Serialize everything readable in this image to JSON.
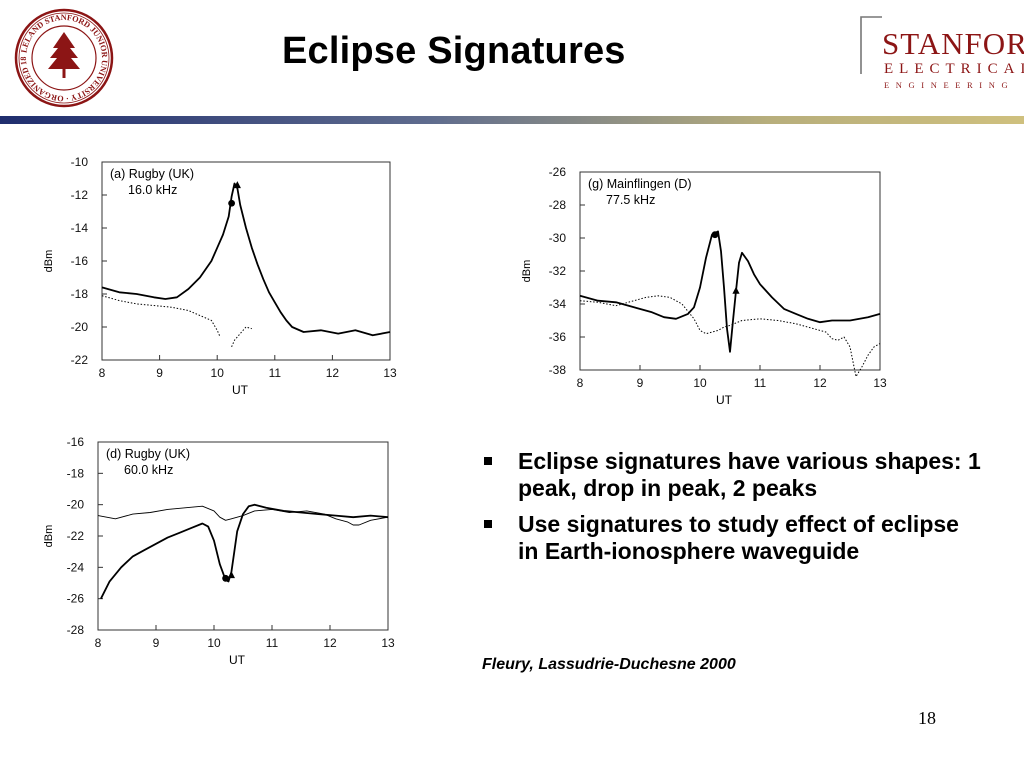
{
  "slide": {
    "title": "Eclipse Signatures",
    "page_number": "18",
    "bullets": [
      "Eclipse signatures have various shapes: 1 peak, drop in peak, 2 peaks",
      "Use signatures to study effect of eclipse in Earth-ionosphere waveguide"
    ],
    "citation": "Fleury, Lassudrie-Duchesne 2000",
    "seal_text": "LELAND STANFORD JUNIOR UNIVERSITY · ORGANIZED 1891",
    "logo": {
      "line1": "STANFORD",
      "line2": "ELECTRICAL",
      "line3": "ENGINEERING"
    }
  },
  "colors": {
    "accent_navy": "#2a3a78",
    "accent_gold": "#c8b560",
    "stanford_red": "#8c1515",
    "ink": "#000000"
  },
  "chart_data": [
    {
      "type": "line",
      "title": "(a) Rugby (UK)",
      "subtitle": "16.0 kHz",
      "xlabel": "UT",
      "ylabel": "dBm",
      "xlim": [
        8,
        13
      ],
      "ylim": [
        -22,
        -10
      ],
      "xticks": [
        8,
        9,
        10,
        11,
        12,
        13
      ],
      "yticks": [
        -10,
        -12,
        -14,
        -16,
        -18,
        -20,
        -22
      ],
      "grid": false,
      "series": [
        {
          "style": "solid",
          "x": [
            8.0,
            8.3,
            8.6,
            8.9,
            9.1,
            9.3,
            9.5,
            9.7,
            9.9,
            10.0,
            10.1,
            10.2,
            10.25,
            10.3,
            10.35,
            10.4,
            10.5,
            10.6,
            10.7,
            10.8,
            10.9,
            11.0,
            11.1,
            11.2,
            11.3,
            11.5,
            11.8,
            12.1,
            12.4,
            12.7,
            13.0
          ],
          "y": [
            -17.6,
            -17.9,
            -18.0,
            -18.2,
            -18.3,
            -18.2,
            -17.7,
            -17.0,
            -16.0,
            -15.2,
            -14.4,
            -13.3,
            -12.1,
            -11.3,
            -11.6,
            -12.6,
            -14.0,
            -15.2,
            -16.2,
            -17.1,
            -17.9,
            -18.5,
            -19.1,
            -19.6,
            -20.0,
            -20.3,
            -20.2,
            -20.4,
            -20.2,
            -20.5,
            -20.3
          ]
        },
        {
          "style": "dotted",
          "x": [
            8.0,
            8.3,
            8.6,
            8.9,
            9.2,
            9.5,
            9.7,
            9.9,
            10.0,
            10.05
          ],
          "y": [
            -18.1,
            -18.4,
            -18.6,
            -18.7,
            -18.8,
            -19.0,
            -19.3,
            -19.6,
            -20.2,
            -20.6
          ]
        },
        {
          "style": "dotted",
          "x": [
            10.25,
            10.3,
            10.4,
            10.5,
            10.6
          ],
          "y": [
            -21.2,
            -20.8,
            -20.4,
            -20.0,
            -20.1
          ]
        }
      ],
      "markers": [
        {
          "shape": "circle",
          "x": 10.25,
          "y": -12.5
        },
        {
          "shape": "triangle",
          "x": 10.35,
          "y": -11.4
        }
      ]
    },
    {
      "type": "line",
      "title": "(g) Mainflingen (D)",
      "subtitle": "77.5 kHz",
      "xlabel": "UT",
      "ylabel": "dBm",
      "xlim": [
        8,
        13
      ],
      "ylim": [
        -38,
        -26
      ],
      "xticks": [
        8,
        9,
        10,
        11,
        12,
        13
      ],
      "yticks": [
        -26,
        -28,
        -30,
        -32,
        -34,
        -36,
        -38
      ],
      "grid": false,
      "series": [
        {
          "style": "solid",
          "x": [
            8.0,
            8.3,
            8.6,
            8.9,
            9.2,
            9.4,
            9.6,
            9.8,
            9.9,
            10.0,
            10.1,
            10.2,
            10.3,
            10.35,
            10.4,
            10.45,
            10.5,
            10.55,
            10.6,
            10.65,
            10.7,
            10.8,
            10.9,
            11.0,
            11.2,
            11.4,
            11.6,
            11.8,
            12.0,
            12.2,
            12.5,
            12.8,
            13.0
          ],
          "y": [
            -33.5,
            -33.8,
            -33.9,
            -34.2,
            -34.5,
            -34.8,
            -34.9,
            -34.6,
            -34.2,
            -33.0,
            -31.2,
            -29.8,
            -29.6,
            -30.8,
            -33.0,
            -35.5,
            -36.9,
            -35.0,
            -33.2,
            -31.5,
            -30.9,
            -31.4,
            -32.2,
            -32.8,
            -33.6,
            -34.3,
            -34.6,
            -34.9,
            -35.1,
            -35.0,
            -35.0,
            -34.8,
            -34.6
          ]
        },
        {
          "style": "dotted",
          "x": [
            8.0,
            8.3,
            8.6,
            8.9,
            9.1,
            9.3,
            9.5,
            9.7,
            9.9,
            10.0,
            10.1,
            10.2,
            10.3,
            10.4,
            10.5,
            10.7,
            11.0,
            11.3,
            11.6,
            11.9,
            12.1,
            12.2,
            12.3,
            12.4,
            12.5,
            12.6,
            12.7,
            12.8,
            12.9,
            13.0
          ],
          "y": [
            -33.8,
            -33.9,
            -34.1,
            -33.8,
            -33.6,
            -33.5,
            -33.6,
            -34.0,
            -34.9,
            -35.6,
            -35.8,
            -35.7,
            -35.6,
            -35.4,
            -35.3,
            -35.0,
            -34.9,
            -35.0,
            -35.2,
            -35.5,
            -35.7,
            -36.1,
            -36.2,
            -36.0,
            -36.6,
            -38.4,
            -37.8,
            -37.1,
            -36.6,
            -36.4
          ]
        }
      ],
      "markers": [
        {
          "shape": "circle",
          "x": 10.25,
          "y": -29.8
        },
        {
          "shape": "triangle",
          "x": 10.6,
          "y": -33.2
        }
      ]
    },
    {
      "type": "line",
      "title": "(d) Rugby (UK)",
      "subtitle": "60.0 kHz",
      "xlabel": "UT",
      "ylabel": "dBm",
      "xlim": [
        8,
        13
      ],
      "ylim": [
        -28,
        -16
      ],
      "xticks": [
        8,
        9,
        10,
        11,
        12,
        13
      ],
      "yticks": [
        -16,
        -18,
        -20,
        -22,
        -24,
        -26,
        -28
      ],
      "grid": false,
      "series": [
        {
          "style": "solid",
          "x": [
            8.05,
            8.2,
            8.4,
            8.6,
            8.8,
            9.0,
            9.2,
            9.4,
            9.6,
            9.8,
            9.9,
            10.0,
            10.1,
            10.2,
            10.25,
            10.3,
            10.35,
            10.4,
            10.5,
            10.6,
            10.7,
            10.9,
            11.2,
            11.5,
            11.8,
            12.1,
            12.4,
            12.7,
            13.0
          ],
          "y": [
            -26.0,
            -24.9,
            -24.0,
            -23.3,
            -22.9,
            -22.5,
            -22.1,
            -21.8,
            -21.5,
            -21.2,
            -21.4,
            -22.3,
            -23.8,
            -24.8,
            -24.9,
            -24.3,
            -23.0,
            -21.7,
            -20.6,
            -20.1,
            -20.0,
            -20.2,
            -20.4,
            -20.5,
            -20.6,
            -20.7,
            -20.8,
            -20.7,
            -20.8
          ]
        },
        {
          "style": "thin",
          "x": [
            8.0,
            8.3,
            8.6,
            8.9,
            9.2,
            9.5,
            9.8,
            10.0,
            10.1,
            10.2,
            10.3,
            10.5,
            10.7,
            11.0,
            11.3,
            11.6,
            11.9,
            12.1,
            12.3,
            12.4,
            12.5,
            12.7,
            13.0
          ],
          "y": [
            -20.7,
            -20.9,
            -20.6,
            -20.5,
            -20.3,
            -20.2,
            -20.1,
            -20.4,
            -20.8,
            -21.0,
            -20.9,
            -20.7,
            -20.4,
            -20.3,
            -20.5,
            -20.4,
            -20.6,
            -20.9,
            -21.1,
            -21.3,
            -21.3,
            -21.0,
            -20.8
          ]
        }
      ],
      "markers": [
        {
          "shape": "circle",
          "x": 10.2,
          "y": -24.7
        },
        {
          "shape": "triangle",
          "x": 10.3,
          "y": -24.5
        }
      ]
    }
  ]
}
